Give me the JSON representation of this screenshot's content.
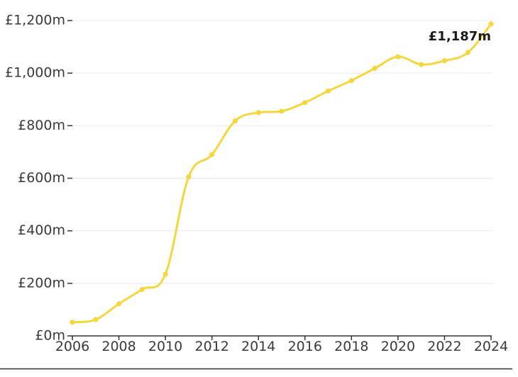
{
  "chart_data": {
    "type": "line",
    "title": "",
    "xlabel": "",
    "ylabel": "",
    "x": [
      2006,
      2007,
      2008,
      2009,
      2010,
      2011,
      2012,
      2013,
      2014,
      2015,
      2016,
      2017,
      2018,
      2019,
      2020,
      2021,
      2022,
      2023,
      2024
    ],
    "series": [
      {
        "values": [
          52,
          62,
          122,
          177,
          235,
          605,
          690,
          818,
          850,
          855,
          888,
          932,
          972,
          1018,
          1062,
          1033,
          1047,
          1078,
          1187
        ],
        "color": "#f6d63d"
      }
    ],
    "xlim": [
      2006,
      2024
    ],
    "ylim": [
      0,
      1200
    ],
    "x_ticks": [
      {
        "value": 2006,
        "label": "2006"
      },
      {
        "value": 2008,
        "label": "2008"
      },
      {
        "value": 2010,
        "label": "2010"
      },
      {
        "value": 2012,
        "label": "2012"
      },
      {
        "value": 2014,
        "label": "2014"
      },
      {
        "value": 2016,
        "label": "2016"
      },
      {
        "value": 2018,
        "label": "2018"
      },
      {
        "value": 2020,
        "label": "2020"
      },
      {
        "value": 2022,
        "label": "2022"
      },
      {
        "value": 2024,
        "label": "2024"
      }
    ],
    "y_ticks": [
      {
        "value": 0,
        "label": "£0m"
      },
      {
        "value": 200,
        "label": "£200m"
      },
      {
        "value": 400,
        "label": "£400m"
      },
      {
        "value": 600,
        "label": "£600m"
      },
      {
        "value": 800,
        "label": "£800m"
      },
      {
        "value": 1000,
        "label": "£1,000m"
      },
      {
        "value": 1200,
        "label": "£1,200m"
      }
    ],
    "annotations": [
      {
        "x": 2024,
        "y": 1187,
        "text": "£1,187m"
      }
    ],
    "grid": true,
    "colors": {
      "line": "#f6d63d",
      "marker": "#f6d63d",
      "grid": "#e8e8e8",
      "axis": "#333333",
      "tick_text": "#3a3a3a",
      "annotation_text": "#1a1a1a",
      "bottom_rule": "#333333"
    }
  }
}
